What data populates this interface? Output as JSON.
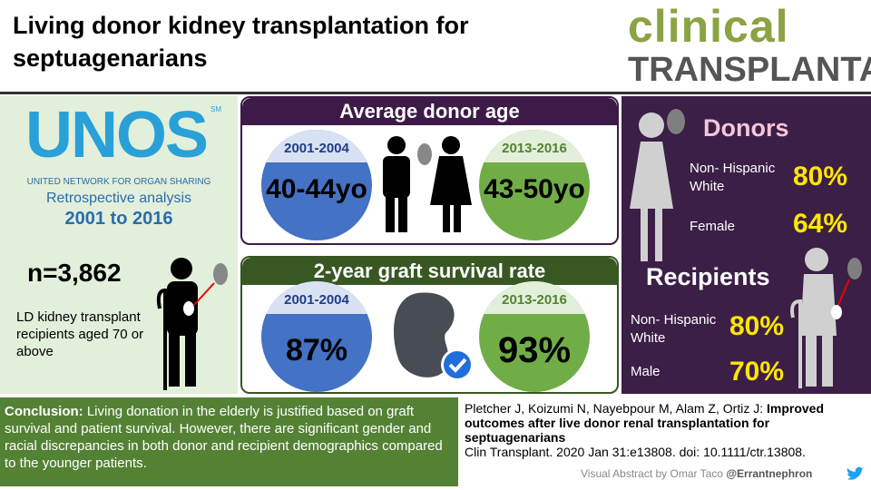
{
  "header": {
    "title": "Living donor kidney transplantation for septuagenarians",
    "logo": {
      "line1": "clinical",
      "line2": "TRANSPLANTATION"
    }
  },
  "study": {
    "logo": "UNOS",
    "logo_mark": "SM",
    "organization": "UNITED NETWORK FOR ORGAN SHARING",
    "design": "Retrospective analysis",
    "period": "2001 to 2016",
    "sample": "n=3,862",
    "population": "LD kidney transplant recipients aged 70 or above"
  },
  "donor_age": {
    "title": "Average donor age",
    "groups": [
      {
        "period": "2001-2004",
        "value": "40-44yo"
      },
      {
        "period": "2013-2016",
        "value": "43-50yo"
      }
    ]
  },
  "graft_survival": {
    "title": "2-year graft survival rate",
    "groups": [
      {
        "period": "2001-2004",
        "value": "87%"
      },
      {
        "period": "2013-2016",
        "value": "93%"
      }
    ]
  },
  "demographics": {
    "donors": {
      "title": "Donors",
      "rows": [
        {
          "label": "Non- Hispanic White",
          "value": "80%"
        },
        {
          "label": "Female",
          "value": "64%"
        }
      ]
    },
    "recipients": {
      "title": "Recipients",
      "rows": [
        {
          "label": "Non- Hispanic White",
          "value": "80%"
        },
        {
          "label": "Male",
          "value": "70%"
        }
      ]
    }
  },
  "conclusion": {
    "label": "Conclusion:",
    "text": "Living donation in the elderly is justified based on graft survival and patient survival. However, there are significant gender and racial  discrepancies in both donor and recipient demographics compared to the younger patients."
  },
  "citation": {
    "authors": "Pletcher J, Koizumi N, Nayebpour M, Alam Z, Ortiz J:",
    "title": "Improved outcomes after live donor renal transplantation for septuagenarians",
    "source": "Clin Transplant. 2020 Jan 31:e13808. doi: 10.1111/ctr.13808."
  },
  "credit": {
    "text": "Visual Abstract by Omar Taco",
    "handle": "@Errantnephron"
  }
}
